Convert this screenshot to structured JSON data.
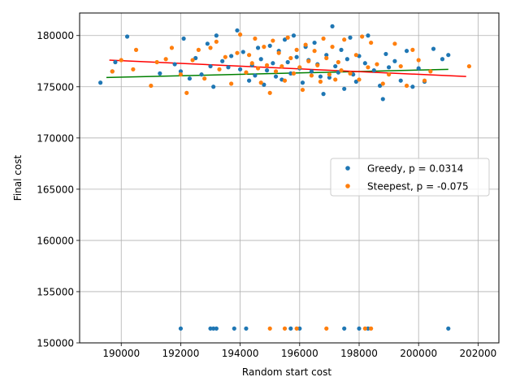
{
  "chart_data": {
    "type": "scatter",
    "xlabel": "Random start cost",
    "ylabel": "Final cost",
    "xlim": [
      188600,
      202700
    ],
    "ylim": [
      150000,
      182200
    ],
    "x_ticks": [
      190000,
      192000,
      194000,
      196000,
      198000,
      200000,
      202000
    ],
    "y_ticks": [
      150000,
      155000,
      160000,
      165000,
      170000,
      175000,
      180000
    ],
    "x_tick_labels": [
      "190000",
      "192000",
      "194000",
      "196000",
      "198000",
      "200000",
      "202000"
    ],
    "y_tick_labels": [
      "150000",
      "155000",
      "160000",
      "165000",
      "170000",
      "175000",
      "180000"
    ],
    "grid": true,
    "legend_position": "center-right",
    "series": [
      {
        "name": "Greedy, p = 0.0314",
        "color": "#1f77b4",
        "trend_color": "#008000",
        "trend": [
          [
            189500,
            175900
          ],
          [
            201000,
            176700
          ]
        ],
        "points": [
          [
            189300,
            175400
          ],
          [
            189700,
            176500
          ],
          [
            189800,
            177400
          ],
          [
            190200,
            179900
          ],
          [
            191300,
            176300
          ],
          [
            191800,
            177200
          ],
          [
            192000,
            176500
          ],
          [
            192100,
            179700
          ],
          [
            192300,
            175800
          ],
          [
            192500,
            177800
          ],
          [
            192700,
            176200
          ],
          [
            192900,
            179200
          ],
          [
            193000,
            177000
          ],
          [
            193100,
            175000
          ],
          [
            193200,
            180000
          ],
          [
            193400,
            177500
          ],
          [
            193600,
            176900
          ],
          [
            193700,
            178000
          ],
          [
            193900,
            180500
          ],
          [
            194000,
            176700
          ],
          [
            194100,
            178400
          ],
          [
            194300,
            175600
          ],
          [
            194400,
            177100
          ],
          [
            194500,
            176100
          ],
          [
            194600,
            178800
          ],
          [
            194700,
            177700
          ],
          [
            194800,
            175200
          ],
          [
            194900,
            176600
          ],
          [
            195000,
            179000
          ],
          [
            195100,
            177300
          ],
          [
            195200,
            176000
          ],
          [
            195300,
            178500
          ],
          [
            195400,
            175700
          ],
          [
            195500,
            179600
          ],
          [
            195600,
            177400
          ],
          [
            195700,
            176300
          ],
          [
            195800,
            180000
          ],
          [
            195900,
            177900
          ],
          [
            196000,
            176800
          ],
          [
            196100,
            175400
          ],
          [
            196200,
            178900
          ],
          [
            196300,
            177600
          ],
          [
            196400,
            176500
          ],
          [
            196500,
            179300
          ],
          [
            196600,
            177200
          ],
          [
            196700,
            176000
          ],
          [
            196800,
            174300
          ],
          [
            196900,
            178100
          ],
          [
            197000,
            175900
          ],
          [
            197100,
            180900
          ],
          [
            197200,
            177000
          ],
          [
            197300,
            176400
          ],
          [
            197400,
            178600
          ],
          [
            197500,
            174800
          ],
          [
            197600,
            177700
          ],
          [
            197700,
            179800
          ],
          [
            197800,
            176200
          ],
          [
            197900,
            175500
          ],
          [
            198000,
            178000
          ],
          [
            198200,
            177300
          ],
          [
            198300,
            180000
          ],
          [
            198500,
            176600
          ],
          [
            198700,
            175100
          ],
          [
            198800,
            173800
          ],
          [
            198900,
            178200
          ],
          [
            199000,
            176900
          ],
          [
            199200,
            177500
          ],
          [
            199400,
            175600
          ],
          [
            199600,
            178500
          ],
          [
            199800,
            175000
          ],
          [
            200000,
            176800
          ],
          [
            200200,
            175500
          ],
          [
            200500,
            178700
          ],
          [
            200800,
            177700
          ],
          [
            201000,
            178100
          ],
          [
            193200,
            151400
          ],
          [
            193000,
            151400
          ],
          [
            193100,
            151400
          ],
          [
            192000,
            151400
          ],
          [
            193800,
            151400
          ],
          [
            194200,
            151400
          ],
          [
            195700,
            151400
          ],
          [
            196000,
            151400
          ],
          [
            197500,
            151400
          ],
          [
            198000,
            151400
          ],
          [
            198300,
            151400
          ],
          [
            201000,
            151400
          ]
        ]
      },
      {
        "name": "Steepest, p = -0.075",
        "color": "#ff7f0e",
        "trend_color": "#ff0000",
        "trend": [
          [
            189600,
            177600
          ],
          [
            201600,
            176000
          ]
        ],
        "points": [
          [
            189700,
            176500
          ],
          [
            190000,
            177600
          ],
          [
            190400,
            176700
          ],
          [
            190500,
            178600
          ],
          [
            191000,
            175100
          ],
          [
            191200,
            177400
          ],
          [
            191500,
            177700
          ],
          [
            191700,
            178800
          ],
          [
            192000,
            176200
          ],
          [
            192200,
            174400
          ],
          [
            192400,
            177600
          ],
          [
            192600,
            178600
          ],
          [
            192800,
            175800
          ],
          [
            193000,
            178800
          ],
          [
            193200,
            179400
          ],
          [
            193300,
            176700
          ],
          [
            193500,
            177900
          ],
          [
            193700,
            175300
          ],
          [
            193900,
            178300
          ],
          [
            194000,
            180100
          ],
          [
            194200,
            176400
          ],
          [
            194300,
            178100
          ],
          [
            194400,
            177300
          ],
          [
            194500,
            179700
          ],
          [
            194600,
            176800
          ],
          [
            194700,
            175400
          ],
          [
            194800,
            178900
          ],
          [
            194900,
            177100
          ],
          [
            195000,
            174400
          ],
          [
            195100,
            179500
          ],
          [
            195200,
            176500
          ],
          [
            195300,
            178300
          ],
          [
            195400,
            177000
          ],
          [
            195500,
            175600
          ],
          [
            195600,
            179800
          ],
          [
            195700,
            177800
          ],
          [
            195800,
            176300
          ],
          [
            195900,
            178600
          ],
          [
            196000,
            176900
          ],
          [
            196100,
            174700
          ],
          [
            196200,
            179100
          ],
          [
            196300,
            177500
          ],
          [
            196400,
            176100
          ],
          [
            196500,
            178500
          ],
          [
            196600,
            177100
          ],
          [
            196700,
            175500
          ],
          [
            196800,
            179700
          ],
          [
            196900,
            177800
          ],
          [
            197000,
            176200
          ],
          [
            197100,
            178900
          ],
          [
            197200,
            175700
          ],
          [
            197300,
            177400
          ],
          [
            197400,
            176600
          ],
          [
            197500,
            179600
          ],
          [
            197700,
            176300
          ],
          [
            197900,
            178100
          ],
          [
            198000,
            175700
          ],
          [
            198100,
            179900
          ],
          [
            198300,
            176900
          ],
          [
            198400,
            179300
          ],
          [
            198600,
            177200
          ],
          [
            198800,
            175300
          ],
          [
            199000,
            176200
          ],
          [
            199200,
            179200
          ],
          [
            199400,
            177000
          ],
          [
            199600,
            175100
          ],
          [
            199800,
            178600
          ],
          [
            200000,
            177600
          ],
          [
            200200,
            175600
          ],
          [
            200400,
            176500
          ],
          [
            201700,
            177000
          ],
          [
            195000,
            151400
          ],
          [
            195500,
            151400
          ],
          [
            195900,
            151400
          ],
          [
            196900,
            151400
          ],
          [
            198200,
            151400
          ],
          [
            198400,
            151400
          ]
        ]
      }
    ]
  }
}
